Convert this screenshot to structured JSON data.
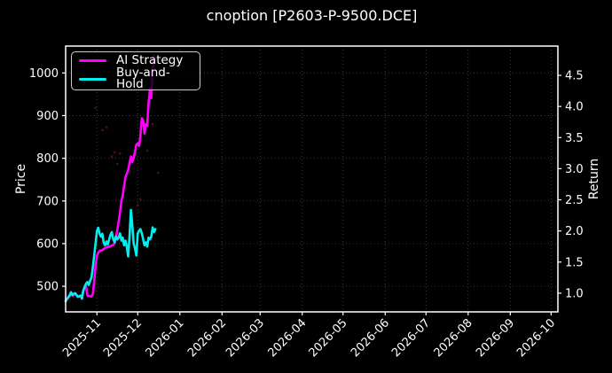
{
  "title": "cnoption [P2603-P-9500.DCE]",
  "colors": {
    "background": "#000000",
    "text": "#ffffff",
    "grid": "#3d3d3d",
    "spine": "#ffffff",
    "ai_strategy": "#ff00ff",
    "buy_and_hold": "#00efef",
    "trade_markers": "#7f1a1a"
  },
  "chart_data": {
    "type": "line",
    "title": "cnoption [P2603-P-9500.DCE]",
    "grid": "dotted",
    "legend_position": "upper left",
    "x_axis": {
      "min_date": "2025-10-09",
      "max_date": "2026-10-06",
      "tick_rotation_deg": 45,
      "ticks": [
        {
          "date": "2025-11-01",
          "label": "2025-11"
        },
        {
          "date": "2025-12-01",
          "label": "2025-12"
        },
        {
          "date": "2026-01-01",
          "label": "2026-01"
        },
        {
          "date": "2026-02-01",
          "label": "2026-02"
        },
        {
          "date": "2026-03-01",
          "label": "2026-03"
        },
        {
          "date": "2026-04-01",
          "label": "2026-04"
        },
        {
          "date": "2026-05-01",
          "label": "2026-05"
        },
        {
          "date": "2026-06-01",
          "label": "2026-06"
        },
        {
          "date": "2026-07-01",
          "label": "2026-07"
        },
        {
          "date": "2026-08-01",
          "label": "2026-08"
        },
        {
          "date": "2026-09-01",
          "label": "2026-09"
        },
        {
          "date": "2026-10-01",
          "label": "2026-10"
        }
      ]
    },
    "y_left": {
      "label": "Price",
      "ticks": [
        500,
        600,
        700,
        800,
        900,
        1000
      ],
      "edge_values": [
        440,
        1063
      ]
    },
    "y_right": {
      "label": "Return",
      "ticks": [
        "1.0",
        "1.5",
        "2.0",
        "2.5",
        "3.0",
        "3.5",
        "4.0",
        "4.5"
      ],
      "edge_values": [
        0.7,
        4.97
      ]
    },
    "legend": [
      {
        "label": "AI Strategy",
        "color": "#ff00ff"
      },
      {
        "label": "Buy-and-Hold",
        "color": "#00efef"
      }
    ],
    "series": [
      {
        "name": "AI Strategy",
        "color": "#ff00ff",
        "axis": "left",
        "points": [
          [
            "2025-10-09",
            466
          ],
          [
            "2025-10-10",
            470
          ],
          [
            "2025-10-12",
            480
          ],
          [
            "2025-10-13",
            486
          ],
          [
            "2025-10-14",
            478
          ],
          [
            "2025-10-16",
            483
          ],
          [
            "2025-10-18",
            475
          ],
          [
            "2025-10-20",
            478
          ],
          [
            "2025-10-21",
            471
          ],
          [
            "2025-10-22",
            489
          ],
          [
            "2025-10-23",
            498
          ],
          [
            "2025-10-24",
            500
          ],
          [
            "2025-10-25",
            478
          ],
          [
            "2025-10-27",
            477
          ],
          [
            "2025-10-28",
            476
          ],
          [
            "2025-10-29",
            482
          ],
          [
            "2025-10-30",
            512
          ],
          [
            "2025-10-31",
            548
          ],
          [
            "2025-11-01",
            572
          ],
          [
            "2025-11-02",
            578
          ],
          [
            "2025-11-03",
            583
          ],
          [
            "2025-11-05",
            585
          ],
          [
            "2025-11-07",
            590
          ],
          [
            "2025-11-09",
            592
          ],
          [
            "2025-11-11",
            594
          ],
          [
            "2025-11-13",
            597
          ],
          [
            "2025-11-14",
            601
          ],
          [
            "2025-11-15",
            614
          ],
          [
            "2025-11-16",
            632
          ],
          [
            "2025-11-17",
            652
          ],
          [
            "2025-11-18",
            673
          ],
          [
            "2025-11-19",
            700
          ],
          [
            "2025-11-20",
            714
          ],
          [
            "2025-11-21",
            735
          ],
          [
            "2025-11-22",
            756
          ],
          [
            "2025-11-24",
            772
          ],
          [
            "2025-11-25",
            790
          ],
          [
            "2025-11-26",
            804
          ],
          [
            "2025-11-27",
            791
          ],
          [
            "2025-11-28",
            801
          ],
          [
            "2025-11-29",
            815
          ],
          [
            "2025-11-30",
            832
          ],
          [
            "2025-12-01",
            835
          ],
          [
            "2025-12-02",
            829
          ],
          [
            "2025-12-03",
            853
          ],
          [
            "2025-12-04",
            894
          ],
          [
            "2025-12-05",
            888
          ],
          [
            "2025-12-06",
            858
          ],
          [
            "2025-12-07",
            880
          ],
          [
            "2025-12-08",
            877
          ],
          [
            "2025-12-09",
            930
          ],
          [
            "2025-12-10",
            964
          ],
          [
            "2025-12-11",
            941
          ],
          [
            "2025-12-12",
            1008
          ],
          [
            "2025-12-13",
            1040
          ]
        ]
      },
      {
        "name": "Buy-and-Hold",
        "color": "#00efef",
        "axis": "left",
        "points": [
          [
            "2025-10-09",
            465
          ],
          [
            "2025-10-10",
            470
          ],
          [
            "2025-10-12",
            478
          ],
          [
            "2025-10-13",
            486
          ],
          [
            "2025-10-14",
            480
          ],
          [
            "2025-10-16",
            484
          ],
          [
            "2025-10-18",
            475
          ],
          [
            "2025-10-20",
            478
          ],
          [
            "2025-10-21",
            471
          ],
          [
            "2025-10-22",
            490
          ],
          [
            "2025-10-23",
            499
          ],
          [
            "2025-10-24",
            506
          ],
          [
            "2025-10-25",
            510
          ],
          [
            "2025-10-26",
            503
          ],
          [
            "2025-10-27",
            513
          ],
          [
            "2025-10-28",
            520
          ],
          [
            "2025-10-29",
            545
          ],
          [
            "2025-10-30",
            572
          ],
          [
            "2025-10-31",
            600
          ],
          [
            "2025-11-01",
            630
          ],
          [
            "2025-11-02",
            637
          ],
          [
            "2025-11-03",
            623
          ],
          [
            "2025-11-04",
            616
          ],
          [
            "2025-11-05",
            623
          ],
          [
            "2025-11-06",
            602
          ],
          [
            "2025-11-07",
            596
          ],
          [
            "2025-11-08",
            605
          ],
          [
            "2025-11-09",
            598
          ],
          [
            "2025-11-10",
            610
          ],
          [
            "2025-11-11",
            621
          ],
          [
            "2025-11-12",
            627
          ],
          [
            "2025-11-13",
            610
          ],
          [
            "2025-11-14",
            603
          ],
          [
            "2025-11-15",
            617
          ],
          [
            "2025-11-16",
            610
          ],
          [
            "2025-11-17",
            614
          ],
          [
            "2025-11-18",
            624
          ],
          [
            "2025-11-19",
            607
          ],
          [
            "2025-11-20",
            614
          ],
          [
            "2025-11-21",
            596
          ],
          [
            "2025-11-22",
            607
          ],
          [
            "2025-11-23",
            592
          ],
          [
            "2025-11-24",
            570
          ],
          [
            "2025-11-25",
            620
          ],
          [
            "2025-11-26",
            679
          ],
          [
            "2025-11-27",
            645
          ],
          [
            "2025-11-28",
            600
          ],
          [
            "2025-11-29",
            589
          ],
          [
            "2025-11-30",
            572
          ],
          [
            "2025-12-01",
            624
          ],
          [
            "2025-12-02",
            630
          ],
          [
            "2025-12-03",
            634
          ],
          [
            "2025-12-04",
            624
          ],
          [
            "2025-12-05",
            610
          ],
          [
            "2025-12-06",
            596
          ],
          [
            "2025-12-07",
            603
          ],
          [
            "2025-12-08",
            593
          ],
          [
            "2025-12-09",
            614
          ],
          [
            "2025-12-10",
            610
          ],
          [
            "2025-12-11",
            617
          ],
          [
            "2025-12-12",
            638
          ],
          [
            "2025-12-13",
            627
          ],
          [
            "2025-12-14",
            634
          ]
        ]
      }
    ],
    "markers": {
      "name": "trade-dots",
      "color": "#7f1a1a",
      "points": [
        [
          "2025-10-31",
          918
        ],
        [
          "2025-11-05",
          866
        ],
        [
          "2025-11-08",
          873
        ],
        [
          "2025-11-12",
          804
        ],
        [
          "2025-11-14",
          814
        ],
        [
          "2025-11-16",
          787
        ],
        [
          "2025-11-18",
          811
        ],
        [
          "2025-12-01",
          690
        ],
        [
          "2025-12-03",
          704
        ],
        [
          "2025-12-08",
          818
        ],
        [
          "2025-12-12",
          880
        ],
        [
          "2025-12-16",
          766
        ]
      ]
    }
  }
}
